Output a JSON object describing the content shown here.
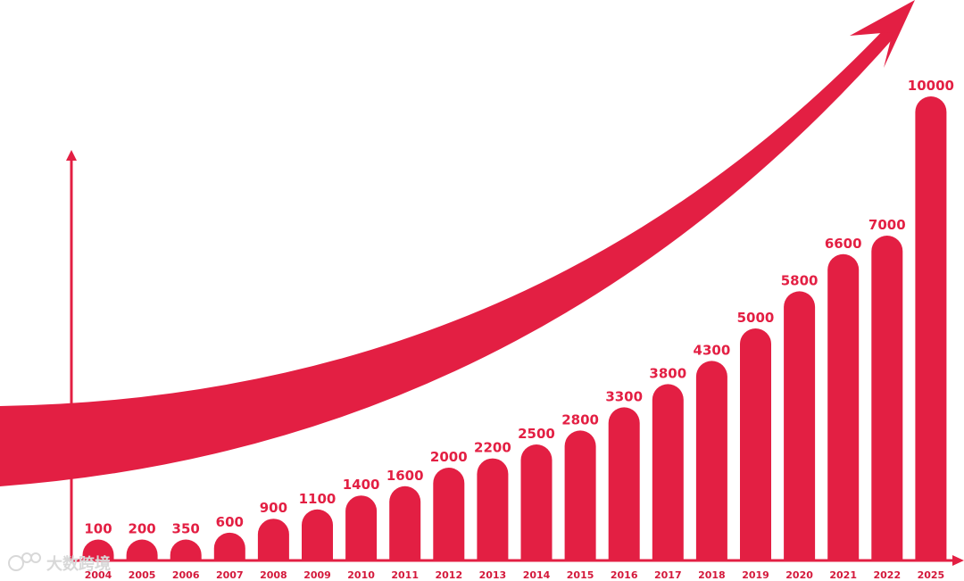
{
  "chart_data": {
    "type": "bar",
    "title": "",
    "xlabel": "",
    "ylabel": "",
    "categories": [
      "2004",
      "2005",
      "2006",
      "2007",
      "2008",
      "2009",
      "2010",
      "2011",
      "2012",
      "2013",
      "2014",
      "2015",
      "2016",
      "2017",
      "2018",
      "2019",
      "2020",
      "2021",
      "2022",
      "2025"
    ],
    "values": [
      100,
      200,
      350,
      600,
      900,
      1100,
      1400,
      1600,
      2000,
      2200,
      2500,
      2800,
      3300,
      3800,
      4300,
      5000,
      5800,
      6600,
      7000,
      10000
    ],
    "data_labels": [
      "100",
      "200",
      "350",
      "600",
      "900",
      "1100",
      "1400",
      "1600",
      "2000",
      "2200",
      "2500",
      "2800",
      "3300",
      "3800",
      "4300",
      "5000",
      "5800",
      "6600",
      "7000",
      "10000"
    ],
    "ylim": [
      0,
      10000
    ],
    "grid": false,
    "legend": "none",
    "trend_arrow": true
  },
  "colors": {
    "bar": "#e31f43",
    "arrow": "#e31f43",
    "axis": "#e31f43",
    "value_label": "#e31f43",
    "tick_label": "#d41a3c",
    "watermark": "#d8d8d8"
  },
  "watermark": {
    "text": "大数跨境",
    "icon": "watermark-logo-icon"
  }
}
